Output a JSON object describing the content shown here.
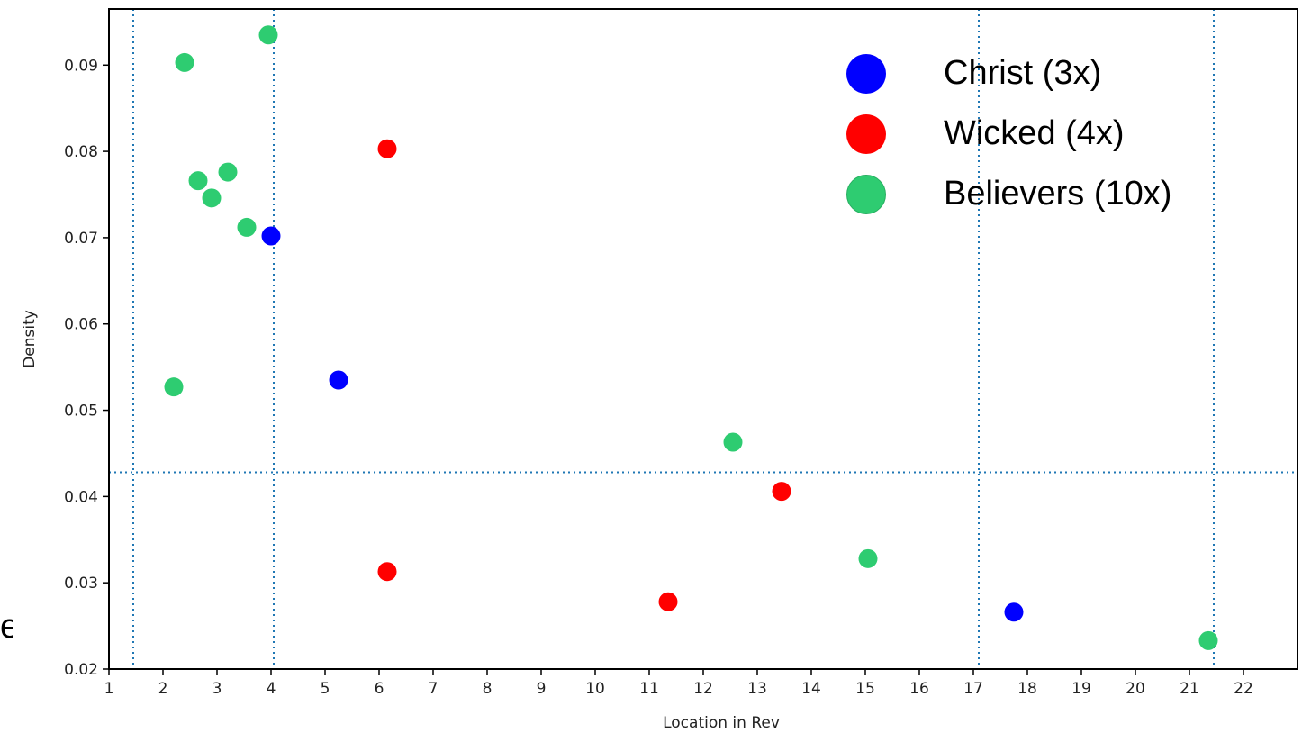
{
  "edge_fragment": "e",
  "chart_data": {
    "type": "scatter",
    "xlabel": "Location in Rev",
    "ylabel": "Density",
    "xlim": [
      1,
      23
    ],
    "ylim": [
      0.02,
      0.0965
    ],
    "x_ticks": [
      {
        "v": 1,
        "label": "1"
      },
      {
        "v": 2,
        "label": "2"
      },
      {
        "v": 3,
        "label": "3"
      },
      {
        "v": 4,
        "label": "4"
      },
      {
        "v": 5,
        "label": "5"
      },
      {
        "v": 6,
        "label": "6"
      },
      {
        "v": 7,
        "label": "7"
      },
      {
        "v": 8,
        "label": "8"
      },
      {
        "v": 9,
        "label": "9"
      },
      {
        "v": 10,
        "label": "10"
      },
      {
        "v": 11,
        "label": "11"
      },
      {
        "v": 12,
        "label": "12"
      },
      {
        "v": 13,
        "label": "13"
      },
      {
        "v": 14,
        "label": "14"
      },
      {
        "v": 15,
        "label": "15"
      },
      {
        "v": 16,
        "label": "16"
      },
      {
        "v": 17,
        "label": "17"
      },
      {
        "v": 18,
        "label": "18"
      },
      {
        "v": 19,
        "label": "19"
      },
      {
        "v": 20,
        "label": "20"
      },
      {
        "v": 21,
        "label": "21"
      },
      {
        "v": 22,
        "label": "22"
      }
    ],
    "y_ticks": [
      0.02,
      0.03,
      0.04,
      0.05,
      0.06,
      0.07,
      0.08,
      0.09
    ],
    "ref_lines": {
      "x": [
        1.45,
        4.05,
        17.1,
        21.45
      ],
      "y": [
        0.0428
      ]
    },
    "series": [
      {
        "name": "Christ (3x)",
        "color": "#0000ff",
        "points": [
          [
            4.0,
            0.0702
          ],
          [
            5.25,
            0.0535
          ],
          [
            17.75,
            0.0266
          ]
        ]
      },
      {
        "name": "Wicked (4x)",
        "color": "#ff0000",
        "points": [
          [
            6.15,
            0.0803
          ],
          [
            6.15,
            0.0313
          ],
          [
            11.35,
            0.0278
          ],
          [
            13.45,
            0.0406
          ]
        ]
      },
      {
        "name": "Believers (10x)",
        "color": "#2ecc71",
        "points": [
          [
            2.4,
            0.0903
          ],
          [
            3.95,
            0.0935
          ],
          [
            2.65,
            0.0766
          ],
          [
            2.9,
            0.0746
          ],
          [
            3.2,
            0.0776
          ],
          [
            3.55,
            0.0712
          ],
          [
            2.2,
            0.0527
          ],
          [
            12.55,
            0.0463
          ],
          [
            15.05,
            0.0328
          ],
          [
            21.35,
            0.0233
          ]
        ]
      }
    ],
    "legend": {
      "position": "top-right"
    }
  }
}
